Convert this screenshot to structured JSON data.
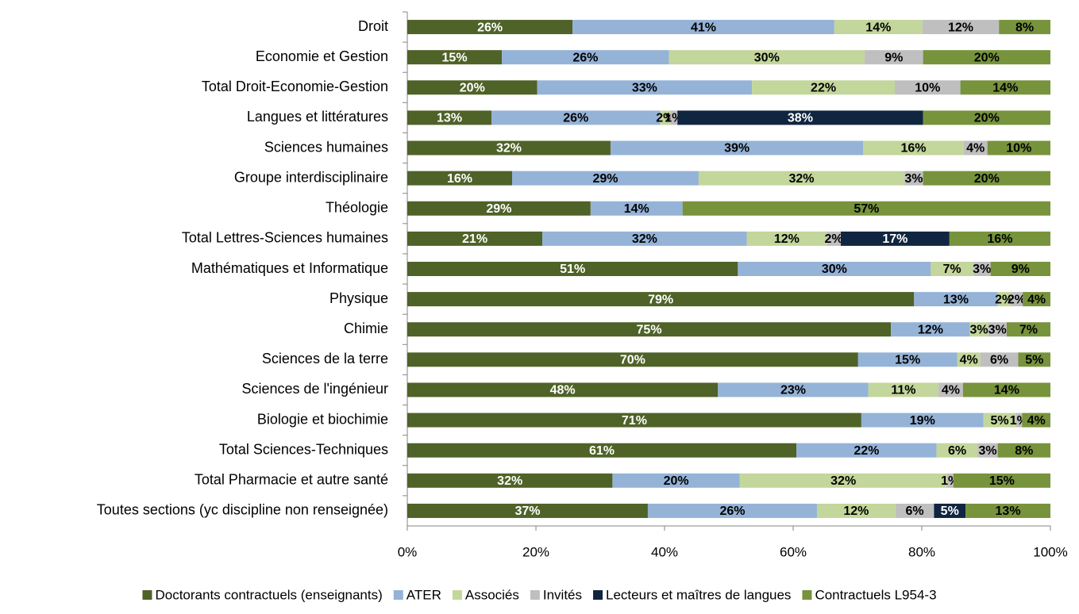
{
  "chart_data": {
    "type": "stacked-bar-horizontal",
    "categories": [
      "Droit",
      "Economie et Gestion",
      "Total Droit-Economie-Gestion",
      "Langues et littératures",
      "Sciences humaines",
      "Groupe interdisciplinaire",
      "Théologie",
      "Total Lettres-Sciences humaines",
      "Mathématiques et Informatique",
      "Physique",
      "Chimie",
      "Sciences de la terre",
      "Sciences de l'ingénieur",
      "Biologie et biochimie",
      "Total Sciences-Techniques",
      "Total Pharmacie et autre santé",
      "Toutes sections (yc discipline non renseignée)"
    ],
    "series": [
      {
        "name": "Doctorants contractuels (enseignants)",
        "color": "#4f6228",
        "label_color": "#ffffff",
        "values": [
          25.7,
          14.7,
          20.2,
          13.1,
          31.6,
          16.3,
          28.5,
          21.0,
          51.4,
          78.8,
          75.2,
          70.1,
          48.3,
          70.6,
          60.5,
          31.9,
          37.4
        ],
        "value_labels": [
          "26%",
          "15%",
          "20%",
          "13%",
          "32%",
          "16%",
          "29%",
          "21%",
          "51%",
          "79%",
          "75%",
          "70%",
          "48%",
          "71%",
          "61%",
          "32%",
          "37%"
        ]
      },
      {
        "name": "ATER",
        "color": "#95b3d7",
        "label_color": "#000000",
        "values": [
          40.7,
          26.0,
          33.4,
          26.2,
          39.3,
          29.0,
          14.3,
          31.8,
          30.0,
          13.0,
          12.3,
          15.4,
          23.4,
          19.0,
          21.8,
          19.8,
          26.3
        ],
        "value_labels": [
          "41%",
          "26%",
          "33%",
          "26%",
          "39%",
          "29%",
          "14%",
          "32%",
          "30%",
          "13%",
          "12%",
          "15%",
          "23%",
          "19%",
          "22%",
          "20%",
          "26%"
        ]
      },
      {
        "name": "Associés",
        "color": "#c3d69b",
        "label_color": "#000000",
        "values": [
          13.7,
          30.4,
          22.2,
          1.6,
          15.6,
          32.0,
          null,
          12.4,
          6.6,
          2.0,
          2.8,
          3.6,
          10.9,
          5.0,
          6.4,
          32.2,
          12.2
        ],
        "value_labels": [
          "14%",
          "30%",
          "22%",
          "2%",
          "16%",
          "32%",
          null,
          "12%",
          "7%",
          "2%",
          "3%",
          "4%",
          "11%",
          "5%",
          "6%",
          "32%",
          "12%"
        ]
      },
      {
        "name": "Invités",
        "color": "#bfbfbf",
        "label_color": "#000000",
        "values": [
          11.9,
          9.1,
          10.2,
          1.1,
          3.7,
          2.9,
          null,
          2.2,
          2.7,
          1.9,
          2.9,
          5.9,
          3.8,
          1.0,
          3.1,
          1.0,
          6.0
        ],
        "value_labels": [
          "12%",
          "9%",
          "10%",
          "1%",
          "4%",
          "3%",
          null,
          "2%",
          "3%",
          "2%",
          "3%",
          "6%",
          "4%",
          "1%",
          "3%",
          "1%",
          "6%"
        ]
      },
      {
        "name": "Lecteurs et maîtres de langues",
        "color": "#10253f",
        "label_color": "#ffffff",
        "values": [
          null,
          null,
          null,
          38.2,
          null,
          null,
          null,
          16.9,
          null,
          null,
          null,
          null,
          null,
          null,
          null,
          null,
          4.9
        ],
        "value_labels": [
          null,
          null,
          null,
          "38%",
          null,
          null,
          null,
          "17%",
          null,
          null,
          null,
          null,
          null,
          null,
          null,
          null,
          "5%"
        ]
      },
      {
        "name": "Contractuels L954-3",
        "color": "#77933c",
        "label_color": "#000000",
        "values": [
          8.0,
          19.8,
          14.0,
          19.8,
          9.8,
          19.8,
          57.2,
          15.7,
          9.3,
          4.3,
          6.8,
          5.0,
          13.6,
          4.4,
          8.2,
          15.1,
          13.2
        ],
        "value_labels": [
          "8%",
          "20%",
          "14%",
          "20%",
          "10%",
          "20%",
          "57%",
          "16%",
          "9%",
          "4%",
          "7%",
          "5%",
          "14%",
          "4%",
          "8%",
          "15%",
          "13%"
        ]
      }
    ],
    "xlim": [
      0,
      100
    ],
    "xticks": [
      {
        "value": 0,
        "label": "0%"
      },
      {
        "value": 20,
        "label": "20%"
      },
      {
        "value": 40,
        "label": "40%"
      },
      {
        "value": 60,
        "label": "60%"
      },
      {
        "value": 80,
        "label": "80%"
      },
      {
        "value": 100,
        "label": "100%"
      }
    ],
    "legend": "bottom"
  }
}
